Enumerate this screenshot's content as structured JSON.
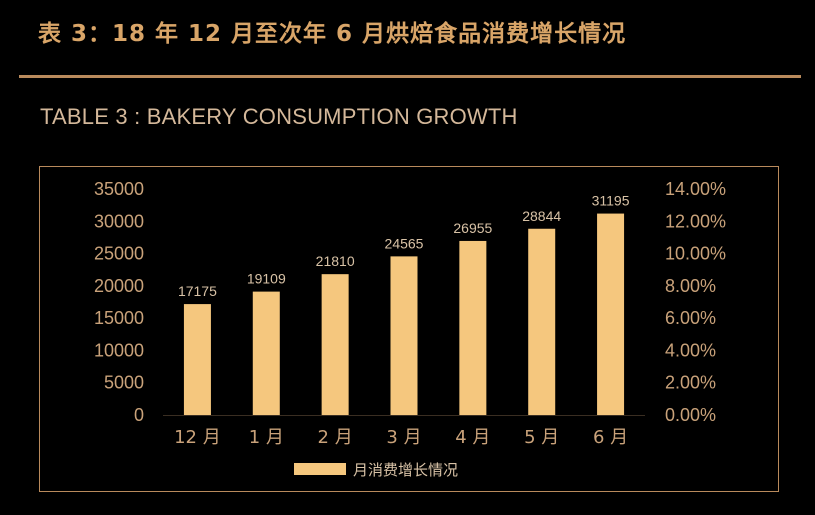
{
  "header": {
    "title_cn": "表 3：18 年 12 月至次年 6 月烘焙食品消费增长情况",
    "title_en": "TABLE 3 : BAKERY CONSUMPTION GROWTH"
  },
  "colors": {
    "background": "#000000",
    "bar": "#f5c77e",
    "accent": "#b98a5c",
    "title": "#d9a568",
    "axis_text": "#c9a27a"
  },
  "chart_data": {
    "type": "bar",
    "categories": [
      "12 月",
      "1 月",
      "2 月",
      "3 月",
      "4 月",
      "5 月",
      "6 月"
    ],
    "series": [
      {
        "name": "月消费增长情况",
        "values": [
          17175,
          19109,
          21810,
          24565,
          26955,
          28844,
          31195
        ]
      }
    ],
    "data_labels": [
      "17175",
      "19109",
      "21810",
      "24565",
      "26955",
      "28844",
      "31195"
    ],
    "ylim": [
      0,
      35000
    ],
    "y_ticks": [
      "0",
      "5000",
      "10000",
      "15000",
      "20000",
      "25000",
      "30000",
      "35000"
    ],
    "y2lim": [
      0,
      0.14
    ],
    "y2_ticks": [
      "0.00%",
      "2.00%",
      "4.00%",
      "6.00%",
      "8.00%",
      "10.00%",
      "12.00%",
      "14.00%"
    ],
    "grid": false,
    "legend_position": "bottom"
  }
}
